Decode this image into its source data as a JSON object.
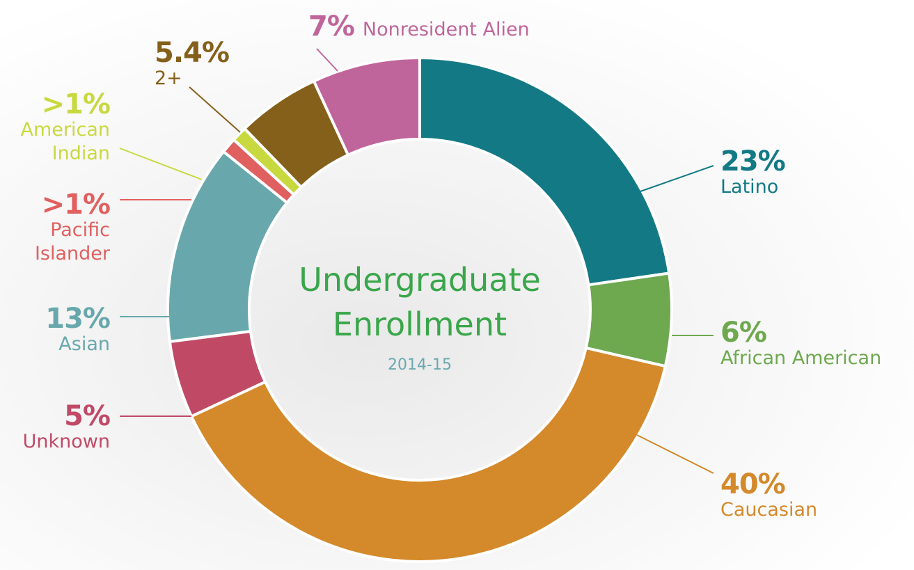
{
  "chart_data": {
    "type": "donut",
    "title": "Undergraduate Enrollment",
    "subtitle": "2014-15",
    "categories": [
      "Latino",
      "African American",
      "Caucasian",
      "Unknown",
      "Asian",
      "Pacific Islander",
      "American Indian",
      "2+",
      "Nonresident Alien"
    ],
    "values": [
      23,
      6,
      40,
      5,
      13,
      1,
      1,
      5.4,
      7
    ],
    "value_labels": [
      "23%",
      "6%",
      "40%",
      "5%",
      "13%",
      ">1%",
      ">1%",
      "5.4%",
      "7%"
    ],
    "colors": [
      "#137a85",
      "#6ea84f",
      "#d4892a",
      "#c04a66",
      "#68a8ac",
      "#e06060",
      "#c8d940",
      "#84601a",
      "#c0659b"
    ]
  }
}
